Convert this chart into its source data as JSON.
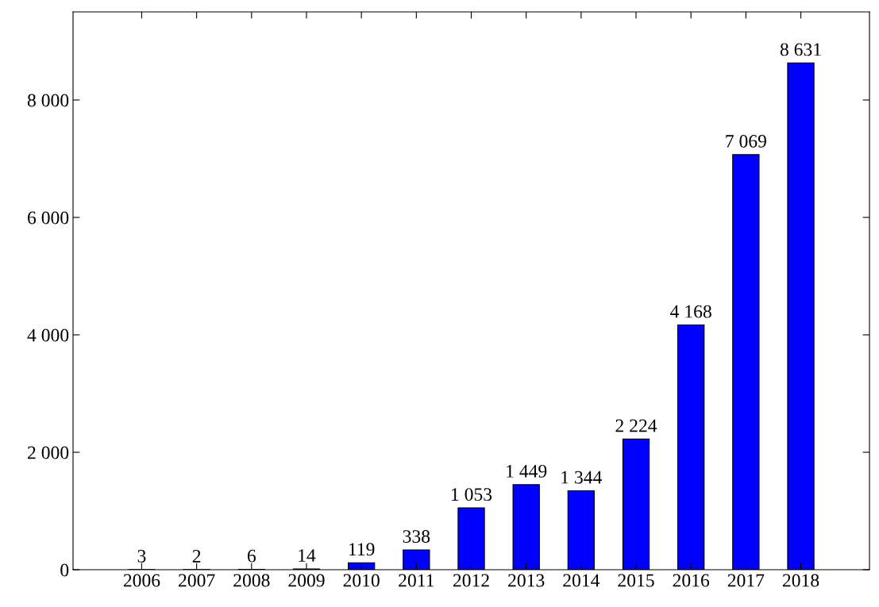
{
  "chart_data": {
    "type": "bar",
    "categories": [
      "2006",
      "2007",
      "2008",
      "2009",
      "2010",
      "2011",
      "2012",
      "2013",
      "2014",
      "2015",
      "2016",
      "2017",
      "2018"
    ],
    "values": [
      3,
      2,
      6,
      14,
      119,
      338,
      1053,
      1449,
      1344,
      2224,
      4168,
      7069,
      8631
    ],
    "value_labels": [
      "3",
      "2",
      "6",
      "14",
      "119",
      "338",
      "1 053",
      "1 449",
      "1 344",
      "2 224",
      "4 168",
      "7 069",
      "8 631"
    ],
    "color": "#0000ff",
    "ylim": [
      0,
      9500
    ],
    "yticks": [
      0,
      {
        "value": 2000,
        "label": "2 000"
      },
      {
        "value": 4000,
        "label": "4 000"
      },
      {
        "value": 6000,
        "label": "6 000"
      },
      {
        "value": 8000,
        "label": "8 000"
      }
    ],
    "grid": false,
    "legend": false
  }
}
